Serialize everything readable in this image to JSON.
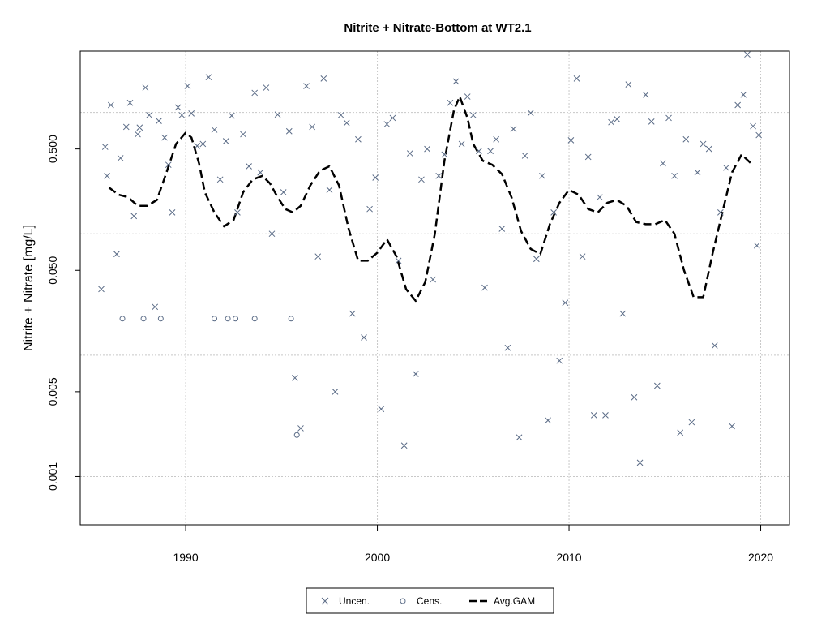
{
  "chart_data": {
    "type": "scatter",
    "title": "Nitrite + Nitrate-Bottom at WT2.1",
    "xlabel": "",
    "ylabel": "Nitrite + Nitrate [mg/L]",
    "x_ticks": [
      1990,
      2000,
      2010,
      2020
    ],
    "y_ticks": [
      "0.001",
      "0.005",
      "0.050",
      "0.500"
    ],
    "y_scale": "log",
    "xlim": [
      1984.5,
      2021.5
    ],
    "ylim": [
      0.0004,
      3.2
    ],
    "grid": true,
    "legend": {
      "position": "bottom-center",
      "entries": [
        "Uncen.",
        "Cens.",
        "Avg.GAM"
      ]
    },
    "colors": {
      "points": "#5a6b86",
      "gam": "#000000",
      "grid": "#c8c8c8"
    },
    "series": [
      {
        "name": "Uncen.",
        "marker": "x",
        "x": [
          1985.6,
          1985.8,
          1985.9,
          1986.1,
          1986.4,
          1986.6,
          1986.9,
          1987.1,
          1987.3,
          1987.5,
          1987.6,
          1987.9,
          1988.1,
          1988.4,
          1988.6,
          1988.9,
          1989.1,
          1989.3,
          1989.6,
          1989.8,
          1990.1,
          1990.3,
          1990.6,
          1990.9,
          1991.2,
          1991.5,
          1991.8,
          1992.1,
          1992.4,
          1992.7,
          1993.0,
          1993.3,
          1993.6,
          1993.9,
          1994.2,
          1994.5,
          1994.8,
          1995.1,
          1995.4,
          1995.7,
          1996.0,
          1996.3,
          1996.6,
          1996.9,
          1997.2,
          1997.5,
          1997.8,
          1998.1,
          1998.4,
          1998.7,
          1999.0,
          1999.3,
          1999.6,
          1999.9,
          2000.2,
          2000.5,
          2000.8,
          2001.1,
          2001.4,
          2001.7,
          2002.0,
          2002.3,
          2002.6,
          2002.9,
          2003.2,
          2003.5,
          2003.8,
          2004.1,
          2004.4,
          2004.7,
          2005.0,
          2005.3,
          2005.6,
          2005.9,
          2006.2,
          2006.5,
          2006.8,
          2007.1,
          2007.4,
          2007.7,
          2008.0,
          2008.3,
          2008.6,
          2008.9,
          2009.2,
          2009.5,
          2009.8,
          2010.1,
          2010.4,
          2010.7,
          2011.0,
          2011.3,
          2011.6,
          2011.9,
          2012.2,
          2012.5,
          2012.8,
          2013.1,
          2013.4,
          2013.7,
          2014.0,
          2014.3,
          2014.6,
          2014.9,
          2015.2,
          2015.5,
          2015.8,
          2016.1,
          2016.4,
          2016.7,
          2017.0,
          2017.3,
          2017.6,
          2017.9,
          2018.2,
          2018.5,
          2018.8,
          2019.1,
          2019.3,
          2019.6,
          2019.8,
          2019.9
        ],
        "y": [
          0.035,
          0.52,
          0.3,
          1.15,
          0.068,
          0.42,
          0.76,
          1.2,
          0.14,
          0.66,
          0.75,
          1.6,
          0.95,
          0.025,
          0.85,
          0.62,
          0.37,
          0.15,
          1.1,
          0.95,
          1.65,
          0.98,
          0.53,
          0.55,
          1.95,
          0.72,
          0.28,
          0.58,
          0.94,
          0.15,
          0.66,
          0.36,
          1.45,
          0.32,
          1.6,
          0.1,
          0.96,
          0.22,
          0.7,
          0.0065,
          0.0025,
          1.65,
          0.76,
          0.065,
          1.9,
          0.23,
          0.005,
          0.95,
          0.82,
          0.022,
          0.6,
          0.014,
          0.16,
          0.29,
          0.0036,
          0.8,
          0.9,
          0.06,
          0.0018,
          0.46,
          0.007,
          0.28,
          0.5,
          0.042,
          0.3,
          0.45,
          1.2,
          1.8,
          0.55,
          1.35,
          0.95,
          0.48,
          0.036,
          0.48,
          0.6,
          0.11,
          0.0115,
          0.73,
          0.0021,
          0.44,
          0.99,
          0.062,
          0.3,
          0.0029,
          0.15,
          0.009,
          0.027,
          0.59,
          1.9,
          0.065,
          0.43,
          0.0032,
          0.2,
          0.0032,
          0.83,
          0.88,
          0.022,
          1.7,
          0.0045,
          0.0013,
          1.4,
          0.84,
          0.0056,
          0.38,
          0.9,
          0.3,
          0.0023,
          0.6,
          0.0028,
          0.32,
          0.55,
          0.5,
          0.012,
          0.15,
          0.35,
          0.0026,
          1.15,
          1.4,
          3.0,
          0.77,
          0.08,
          0.65
        ]
      },
      {
        "name": "Cens.",
        "marker": "o",
        "x": [
          1986.7,
          1987.8,
          1988.7,
          1991.5,
          1992.2,
          1992.6,
          1993.6,
          1995.5,
          1995.8
        ],
        "y": [
          0.02,
          0.02,
          0.02,
          0.02,
          0.02,
          0.02,
          0.02,
          0.02,
          0.0022
        ]
      },
      {
        "name": "Avg.GAM",
        "marker": "dashed-line",
        "x": [
          1986.0,
          1986.5,
          1987.0,
          1987.5,
          1988.0,
          1988.5,
          1989.0,
          1989.5,
          1990.0,
          1990.3,
          1990.7,
          1991.0,
          1991.5,
          1992.0,
          1992.5,
          1993.0,
          1993.5,
          1994.0,
          1994.4,
          1994.8,
          1995.2,
          1995.6,
          1996.0,
          1996.5,
          1997.0,
          1997.5,
          1998.0,
          1998.5,
          1999.0,
          1999.5,
          2000.0,
          2000.5,
          2001.0,
          2001.5,
          2002.0,
          2002.5,
          2003.0,
          2003.5,
          2004.0,
          2004.3,
          2004.7,
          2005.0,
          2005.5,
          2006.0,
          2006.5,
          2007.0,
          2007.5,
          2008.0,
          2008.5,
          2009.0,
          2009.5,
          2010.0,
          2010.5,
          2011.0,
          2011.5,
          2012.0,
          2012.5,
          2013.0,
          2013.5,
          2014.0,
          2014.5,
          2015.0,
          2015.5,
          2016.0,
          2016.5,
          2017.0,
          2017.5,
          2018.0,
          2018.5,
          2019.0,
          2019.5
        ],
        "y": [
          0.24,
          0.21,
          0.2,
          0.17,
          0.17,
          0.19,
          0.32,
          0.55,
          0.68,
          0.62,
          0.38,
          0.22,
          0.15,
          0.115,
          0.13,
          0.22,
          0.28,
          0.3,
          0.26,
          0.2,
          0.16,
          0.15,
          0.17,
          0.25,
          0.33,
          0.36,
          0.25,
          0.11,
          0.06,
          0.06,
          0.07,
          0.09,
          0.065,
          0.035,
          0.028,
          0.04,
          0.1,
          0.4,
          1.05,
          1.35,
          0.9,
          0.55,
          0.4,
          0.37,
          0.31,
          0.2,
          0.105,
          0.075,
          0.068,
          0.12,
          0.18,
          0.23,
          0.21,
          0.16,
          0.15,
          0.18,
          0.19,
          0.17,
          0.125,
          0.12,
          0.12,
          0.13,
          0.1,
          0.05,
          0.03,
          0.03,
          0.07,
          0.15,
          0.32,
          0.45,
          0.38
        ]
      }
    ]
  }
}
